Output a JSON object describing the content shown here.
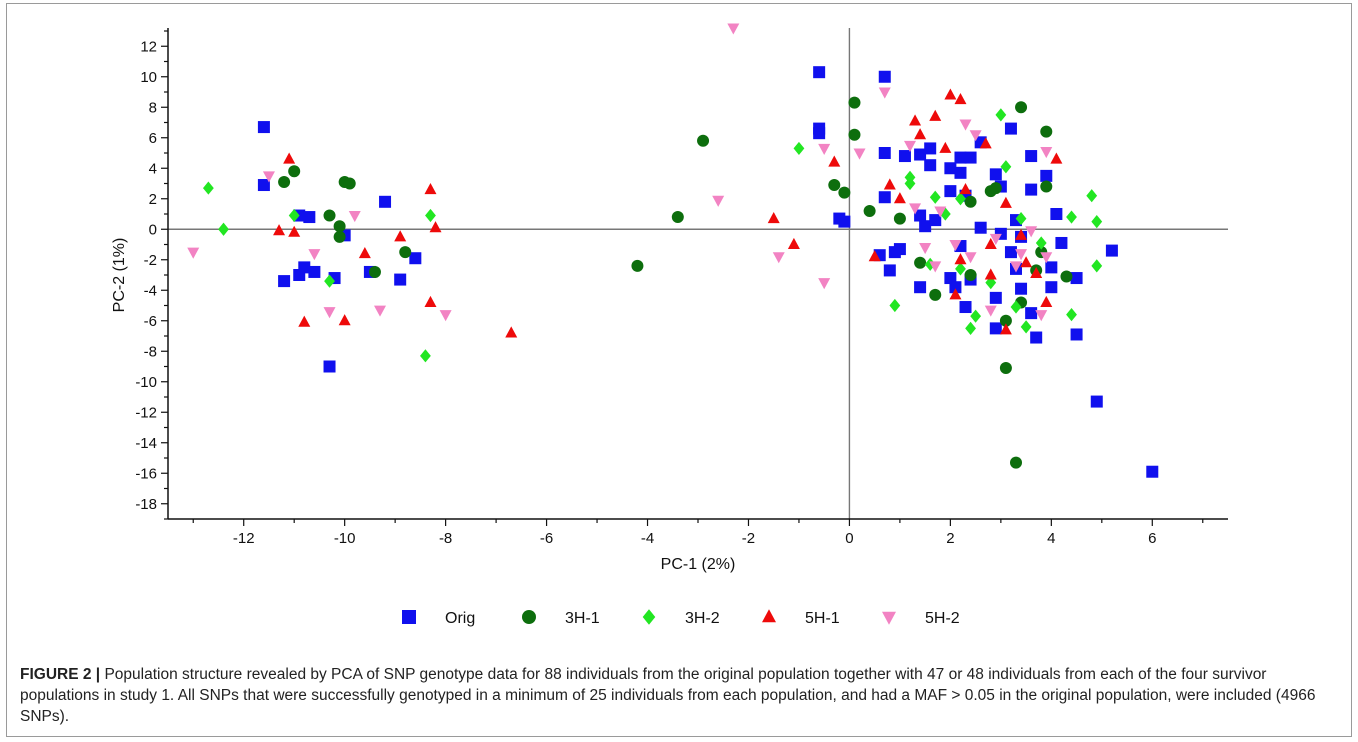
{
  "chart_data": {
    "type": "scatter",
    "xlabel": "PC-1 (2%)",
    "ylabel": "PC-2 (1%)",
    "xlim": [
      -13.5,
      7.5
    ],
    "ylim": [
      -19,
      13
    ],
    "xticks": [
      -12,
      -10,
      -8,
      -6,
      -4,
      -2,
      0,
      2,
      4,
      6
    ],
    "yticks": [
      12,
      10,
      8,
      6,
      4,
      2,
      0,
      -2,
      -4,
      -6,
      -8,
      -10,
      -12,
      -14,
      -16,
      -18
    ],
    "legend_position": "bottom",
    "series": [
      {
        "name": "Orig",
        "marker": "square",
        "color": "#1010ee",
        "points": [
          [
            -11.6,
            6.7
          ],
          [
            -11.6,
            2.9
          ],
          [
            -11.2,
            -3.4
          ],
          [
            -10.9,
            -3.0
          ],
          [
            -10.9,
            0.9
          ],
          [
            -10.7,
            0.8
          ],
          [
            -10.6,
            -2.8
          ],
          [
            -10.8,
            -2.5
          ],
          [
            -10.3,
            -9.0
          ],
          [
            -10.2,
            -3.2
          ],
          [
            -10.0,
            -0.4
          ],
          [
            -9.5,
            -2.8
          ],
          [
            -9.2,
            1.8
          ],
          [
            -8.9,
            -3.3
          ],
          [
            -8.6,
            -1.9
          ],
          [
            -0.6,
            10.3
          ],
          [
            0.7,
            10.0
          ],
          [
            -0.6,
            6.6
          ],
          [
            -0.6,
            6.3
          ],
          [
            0.7,
            5.0
          ],
          [
            -0.2,
            0.7
          ],
          [
            -0.1,
            0.5
          ],
          [
            0.6,
            -1.7
          ],
          [
            0.9,
            -1.5
          ],
          [
            0.7,
            2.1
          ],
          [
            0.8,
            -2.7
          ],
          [
            1.0,
            -1.3
          ],
          [
            1.1,
            4.8
          ],
          [
            1.4,
            4.9
          ],
          [
            1.6,
            5.3
          ],
          [
            1.6,
            4.2
          ],
          [
            1.4,
            0.9
          ],
          [
            1.5,
            0.2
          ],
          [
            1.7,
            0.6
          ],
          [
            1.4,
            -3.8
          ],
          [
            2.0,
            4.0
          ],
          [
            2.2,
            4.7
          ],
          [
            2.4,
            4.7
          ],
          [
            2.2,
            3.7
          ],
          [
            2.0,
            2.5
          ],
          [
            2.3,
            2.2
          ],
          [
            2.6,
            5.7
          ],
          [
            2.6,
            0.1
          ],
          [
            2.2,
            -1.1
          ],
          [
            2.0,
            -3.2
          ],
          [
            2.1,
            -3.8
          ],
          [
            2.3,
            -5.1
          ],
          [
            2.4,
            -3.3
          ],
          [
            2.9,
            3.6
          ],
          [
            3.0,
            2.8
          ],
          [
            3.2,
            6.6
          ],
          [
            3.6,
            4.8
          ],
          [
            3.9,
            3.5
          ],
          [
            3.6,
            2.6
          ],
          [
            3.0,
            -0.3
          ],
          [
            3.3,
            0.6
          ],
          [
            3.4,
            -0.5
          ],
          [
            3.2,
            -1.5
          ],
          [
            3.3,
            -2.6
          ],
          [
            3.4,
            -3.9
          ],
          [
            2.9,
            -4.5
          ],
          [
            2.9,
            -6.5
          ],
          [
            3.6,
            -5.5
          ],
          [
            3.7,
            -7.1
          ],
          [
            4.1,
            1.0
          ],
          [
            4.2,
            -0.9
          ],
          [
            4.0,
            -2.5
          ],
          [
            4.0,
            -3.8
          ],
          [
            4.5,
            -3.2
          ],
          [
            5.2,
            -1.4
          ],
          [
            4.5,
            -6.9
          ],
          [
            4.9,
            -11.3
          ],
          [
            6.0,
            -15.9
          ]
        ]
      },
      {
        "name": "3H-1",
        "marker": "circle",
        "color": "#0d6e0d",
        "points": [
          [
            -11.2,
            3.1
          ],
          [
            -11.0,
            3.8
          ],
          [
            -10.3,
            0.9
          ],
          [
            -10.1,
            -0.5
          ],
          [
            -10.0,
            3.1
          ],
          [
            -9.9,
            3.0
          ],
          [
            -10.1,
            0.2
          ],
          [
            -9.4,
            -2.8
          ],
          [
            -8.8,
            -1.5
          ],
          [
            -4.2,
            -2.4
          ],
          [
            -3.4,
            0.8
          ],
          [
            -2.9,
            5.8
          ],
          [
            0.1,
            8.3
          ],
          [
            0.1,
            6.2
          ],
          [
            -0.3,
            2.9
          ],
          [
            -0.1,
            2.4
          ],
          [
            0.4,
            1.2
          ],
          [
            1.0,
            0.7
          ],
          [
            1.4,
            -2.2
          ],
          [
            1.7,
            -4.3
          ],
          [
            2.4,
            1.8
          ],
          [
            2.8,
            2.5
          ],
          [
            2.9,
            2.7
          ],
          [
            3.1,
            -6.0
          ],
          [
            3.1,
            -9.1
          ],
          [
            3.4,
            8.0
          ],
          [
            3.3,
            -15.3
          ],
          [
            3.9,
            6.4
          ],
          [
            3.9,
            2.8
          ],
          [
            3.8,
            -1.5
          ],
          [
            3.7,
            -2.7
          ],
          [
            4.3,
            -3.1
          ],
          [
            3.4,
            -4.8
          ],
          [
            2.4,
            -3.0
          ]
        ]
      },
      {
        "name": "3H-2",
        "marker": "diamond",
        "color": "#22e622",
        "points": [
          [
            -12.7,
            2.7
          ],
          [
            -12.4,
            0.0
          ],
          [
            -11.0,
            0.9
          ],
          [
            -10.3,
            -3.4
          ],
          [
            -8.4,
            -8.3
          ],
          [
            -8.3,
            0.9
          ],
          [
            -1.0,
            5.3
          ],
          [
            1.2,
            3.4
          ],
          [
            1.2,
            3.0
          ],
          [
            0.9,
            -5.0
          ],
          [
            1.7,
            2.1
          ],
          [
            2.2,
            2.0
          ],
          [
            2.2,
            -2.6
          ],
          [
            2.4,
            -6.5
          ],
          [
            2.5,
            -5.7
          ],
          [
            2.8,
            -3.5
          ],
          [
            3.1,
            4.1
          ],
          [
            3.3,
            -5.1
          ],
          [
            3.4,
            0.7
          ],
          [
            3.5,
            -6.4
          ],
          [
            3.8,
            -0.9
          ],
          [
            4.4,
            0.8
          ],
          [
            4.8,
            2.2
          ],
          [
            4.9,
            0.5
          ],
          [
            4.9,
            -2.4
          ],
          [
            4.4,
            -5.6
          ],
          [
            3.0,
            7.5
          ],
          [
            1.6,
            -2.3
          ],
          [
            1.9,
            1.0
          ]
        ]
      },
      {
        "name": "5H-1",
        "marker": "triangle-up",
        "color": "#ee0a0a",
        "points": [
          [
            -11.1,
            4.6
          ],
          [
            -11.3,
            -0.1
          ],
          [
            -11.0,
            -0.2
          ],
          [
            -10.8,
            -6.1
          ],
          [
            -10.0,
            -6.0
          ],
          [
            -9.6,
            -1.6
          ],
          [
            -8.9,
            -0.5
          ],
          [
            -8.3,
            2.6
          ],
          [
            -8.2,
            0.1
          ],
          [
            -8.3,
            -4.8
          ],
          [
            -6.7,
            -6.8
          ],
          [
            -1.5,
            0.7
          ],
          [
            -1.1,
            -1.0
          ],
          [
            -0.3,
            4.4
          ],
          [
            0.5,
            -1.8
          ],
          [
            0.8,
            2.9
          ],
          [
            1.0,
            2.0
          ],
          [
            1.3,
            7.1
          ],
          [
            1.4,
            6.2
          ],
          [
            1.7,
            7.4
          ],
          [
            1.9,
            5.3
          ],
          [
            2.0,
            8.8
          ],
          [
            2.2,
            8.5
          ],
          [
            2.3,
            2.6
          ],
          [
            2.2,
            -2.0
          ],
          [
            2.1,
            -4.3
          ],
          [
            2.7,
            5.6
          ],
          [
            2.8,
            -1.0
          ],
          [
            2.8,
            -3.0
          ],
          [
            3.1,
            1.7
          ],
          [
            3.4,
            -0.4
          ],
          [
            3.1,
            -6.6
          ],
          [
            3.7,
            -2.9
          ],
          [
            3.9,
            -4.8
          ],
          [
            4.1,
            4.6
          ],
          [
            3.5,
            -2.2
          ]
        ]
      },
      {
        "name": "5H-2",
        "marker": "triangle-down",
        "color": "#f283c3",
        "points": [
          [
            -13.0,
            -1.5
          ],
          [
            -11.5,
            3.5
          ],
          [
            -10.6,
            -1.6
          ],
          [
            -10.3,
            -5.4
          ],
          [
            -9.8,
            0.9
          ],
          [
            -9.3,
            -5.3
          ],
          [
            -8.0,
            -5.6
          ],
          [
            -2.3,
            13.2
          ],
          [
            -2.6,
            1.9
          ],
          [
            -1.4,
            -1.8
          ],
          [
            -0.5,
            -3.5
          ],
          [
            -0.5,
            5.3
          ],
          [
            0.2,
            5.0
          ],
          [
            0.7,
            9.0
          ],
          [
            1.2,
            5.5
          ],
          [
            1.5,
            -1.2
          ],
          [
            1.8,
            1.2
          ],
          [
            1.7,
            -2.4
          ],
          [
            2.1,
            -1.0
          ],
          [
            2.3,
            6.9
          ],
          [
            2.5,
            6.2
          ],
          [
            2.4,
            -1.8
          ],
          [
            2.9,
            -0.6
          ],
          [
            3.4,
            -1.6
          ],
          [
            3.3,
            -2.4
          ],
          [
            3.8,
            -5.6
          ],
          [
            3.9,
            -1.8
          ],
          [
            3.9,
            5.1
          ],
          [
            3.6,
            -0.1
          ],
          [
            2.8,
            -5.3
          ],
          [
            1.3,
            1.4
          ]
        ]
      }
    ]
  },
  "caption": {
    "label": "FIGURE 2 |",
    "text": " Population structure revealed by PCA of SNP genotype data for 88 individuals from the original population together with 47 or 48 individuals from each of the four survivor populations in study 1. All SNPs that were successfully genotyped in a minimum of 25 individuals from each population, and had a MAF > 0.05 in the original population, were included (4966 SNPs)."
  }
}
